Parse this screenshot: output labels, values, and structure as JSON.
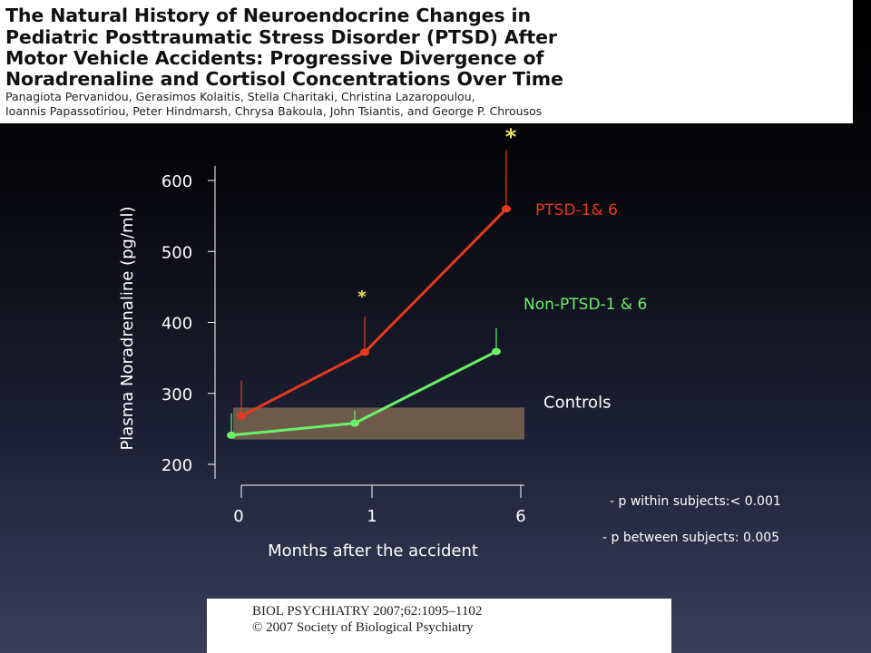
{
  "header": {
    "title_lines": [
      "The Natural History of Neuroendocrine Changes in",
      "Pediatric Posttraumatic Stress Disorder (PTSD) After",
      "Motor Vehicle Accidents: Progressive Divergence of",
      "Noradrenaline and Cortisol Concentrations Over Time"
    ],
    "author_lines": [
      "Panagiota Pervanidou, Gerasimos Kolaitis, Stella Charitaki, Christina Lazaropoulou,",
      "Ioannis Papassotiriou, Peter Hindmarsh, Chrysa Bakoula, John Tsiantis, and George P. Chrousos"
    ]
  },
  "chart_data": {
    "type": "line",
    "y_label": "Plasma Noradrenaline  (pg/ml)",
    "x_label": "Months after the accident",
    "categories": [
      "0",
      "1",
      "6"
    ],
    "ylim": [
      200,
      600
    ],
    "yticks": [
      200,
      300,
      400,
      500,
      600
    ],
    "series": [
      {
        "name": "PTSD-1& 6",
        "color": "#e8391c",
        "values": [
          268,
          358,
          560
        ],
        "errors": [
          50,
          50,
          83
        ]
      },
      {
        "name": "Non-PTSD-1 & 6",
        "color": "#6cf06a",
        "values": [
          241,
          258,
          359
        ],
        "errors": [
          31,
          18,
          33
        ]
      }
    ],
    "bands": [
      {
        "name": "Controls",
        "low": 235,
        "high": 280,
        "color": "#7a6650"
      }
    ],
    "annotations": [
      {
        "text": "*",
        "x": "1"
      },
      {
        "text": "*",
        "x": "6"
      }
    ],
    "notes": [
      "- p within subjects:< 0.001",
      "- p between subjects: 0.005"
    ]
  },
  "footer": {
    "lines": [
      "BIOL PSYCHIATRY 2007;62:1095–1102",
      "© 2007 Society of Biological Psychiatry"
    ]
  }
}
